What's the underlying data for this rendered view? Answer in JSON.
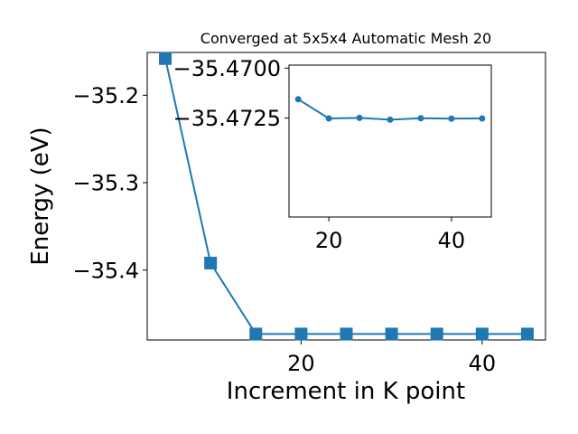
{
  "chart_data": [
    {
      "type": "line",
      "title": "Converged at 5x5x4 Automatic Mesh 20",
      "xlabel": "Increment in K point",
      "ylabel": "Energy (eV)",
      "x": [
        5,
        10,
        15,
        20,
        25,
        30,
        35,
        40,
        45
      ],
      "series": [
        {
          "values": [
            -35.158,
            -35.392,
            -35.4732,
            -35.4732,
            -35.4732,
            -35.4732,
            -35.4732,
            -35.4732,
            -35.4732
          ]
        }
      ],
      "xticks": [
        20,
        40
      ],
      "yticks": [
        -35.2,
        -35.3,
        -35.4
      ],
      "xticklabels": [
        "20",
        "40"
      ],
      "yticklabels": [
        "−35.2",
        "−35.3",
        "−35.4"
      ],
      "xlim": [
        3,
        47
      ],
      "ylim": [
        -35.48,
        -35.151
      ],
      "marker": "square",
      "color": "#1f77b4",
      "grid": false
    },
    {
      "type": "line",
      "inset": true,
      "x": [
        15,
        20,
        25,
        30,
        35,
        40,
        45
      ],
      "series": [
        {
          "values": [
            -35.47156,
            -35.47252,
            -35.47249,
            -35.47258,
            -35.47251,
            -35.47253,
            -35.47252
          ]
        }
      ],
      "xticks": [
        20,
        40
      ],
      "yticks": [
        -35.4725,
        -35.47
      ],
      "xticklabels": [
        "20",
        "40"
      ],
      "yticklabels": [
        "−35.4725",
        "−35.4700"
      ],
      "xlim": [
        13.5,
        46.5
      ],
      "ylim": [
        -35.47745,
        -35.46985
      ],
      "marker": "circle",
      "color": "#1f77b4",
      "grid": false
    }
  ]
}
